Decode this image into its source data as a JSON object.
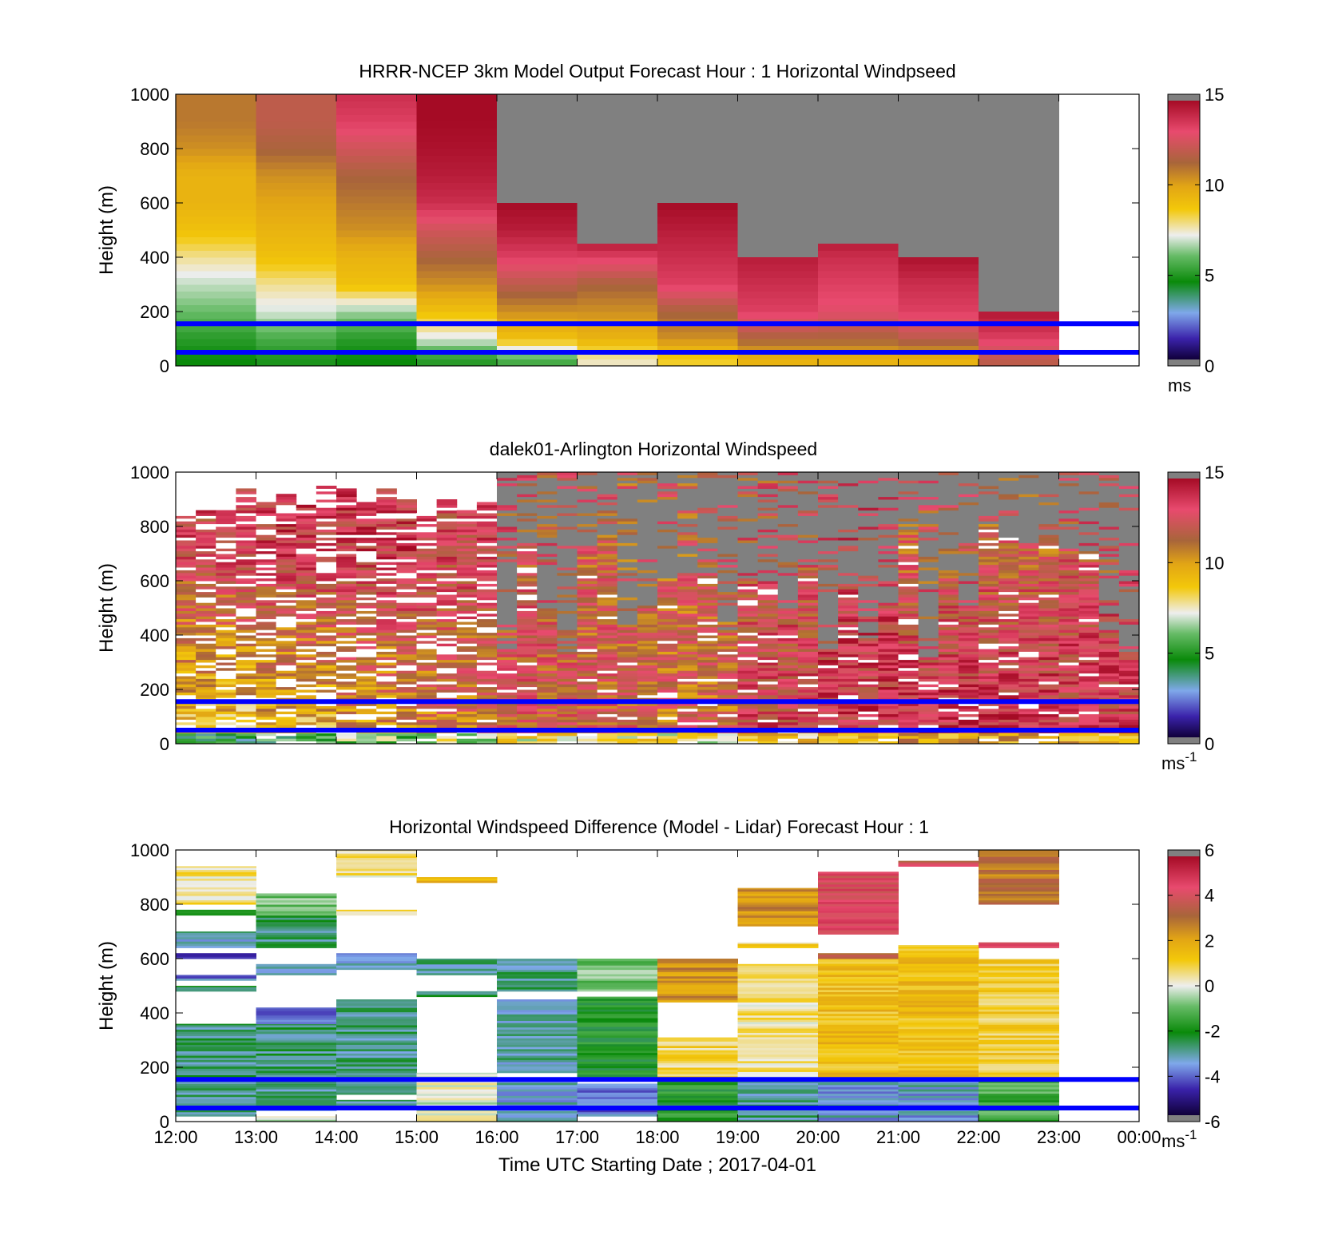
{
  "figure": {
    "xlabel": "Time UTC  Starting Date ; 2017-04-01",
    "x_ticks": [
      "12:00",
      "13:00",
      "14:00",
      "15:00",
      "16:00",
      "17:00",
      "18:00",
      "19:00",
      "20:00",
      "21:00",
      "22:00",
      "23:00",
      "00:00"
    ],
    "y_ticks": [
      "0",
      "200",
      "400",
      "600",
      "800",
      "1000"
    ],
    "ylabel": "Height (m)"
  },
  "chart_data": [
    {
      "type": "heatmap",
      "title": "HRRR-NCEP 3km Model Output   Forecast Hour : 1 Horizontal Windpseed",
      "ylabel": "Height (m)",
      "ylim": [
        0,
        1000
      ],
      "xlim": [
        "12:00",
        "00:00"
      ],
      "x_ticks": [
        "12:00",
        "13:00",
        "14:00",
        "15:00",
        "16:00",
        "17:00",
        "18:00",
        "19:00",
        "20:00",
        "21:00",
        "22:00",
        "23:00",
        "00:00"
      ],
      "colorbar": {
        "ticks": [
          "0",
          "5",
          "10",
          "15"
        ],
        "range": [
          0,
          15
        ],
        "unit": "ms"
      },
      "hlines": [
        50,
        155
      ],
      "columns": [
        "12:00",
        "13:00",
        "14:00",
        "15:00",
        "16:00",
        "17:00",
        "18:00",
        "19:00",
        "20:00",
        "21:00",
        "22:00"
      ],
      "top_of_data": [
        1000,
        1000,
        1000,
        1000,
        600,
        450,
        600,
        400,
        450,
        400,
        180
      ],
      "grey_above_data": true,
      "profiles": [
        {
          "time": "12:00",
          "heights": [
            25,
            100,
            200,
            300,
            400,
            500,
            600,
            700,
            800,
            900,
            1000
          ],
          "speeds": [
            4.5,
            5.0,
            6.0,
            6.8,
            7.8,
            9.0,
            9.5,
            9.5,
            10.5,
            11.0,
            11.0
          ]
        },
        {
          "time": "13:00",
          "heights": [
            25,
            100,
            200,
            300,
            400,
            500,
            600,
            700,
            800,
            900,
            1000
          ],
          "speeds": [
            4.8,
            5.5,
            7.0,
            7.8,
            9.0,
            9.5,
            10.0,
            10.5,
            11.5,
            12.0,
            12.0
          ]
        },
        {
          "time": "14:00",
          "heights": [
            25,
            100,
            200,
            300,
            400,
            500,
            600,
            700,
            800,
            900,
            1000
          ],
          "speeds": [
            4.5,
            5.0,
            6.5,
            9.0,
            9.5,
            10.5,
            11.0,
            11.5,
            12.5,
            13.5,
            14.0
          ]
        },
        {
          "time": "15:00",
          "heights": [
            25,
            100,
            200,
            300,
            400,
            500,
            600,
            700,
            800,
            900,
            1000
          ],
          "speeds": [
            5.0,
            7.0,
            9.0,
            10.5,
            11.5,
            12.5,
            14.0,
            14.5,
            14.8,
            15.0,
            15.0
          ]
        },
        {
          "time": "16:00",
          "heights": [
            25,
            100,
            200,
            300,
            400,
            500,
            600
          ],
          "speeds": [
            5.5,
            9.0,
            10.5,
            12.0,
            13.5,
            14.5,
            15.0
          ]
        },
        {
          "time": "17:00",
          "heights": [
            25,
            100,
            200,
            300,
            400,
            450
          ],
          "speeds": [
            7.5,
            9.5,
            10.5,
            11.5,
            13.5,
            14.5
          ]
        },
        {
          "time": "18:00",
          "heights": [
            25,
            100,
            200,
            300,
            400,
            500,
            600
          ],
          "speeds": [
            8.5,
            10.5,
            11.5,
            13.5,
            14.0,
            14.5,
            15.0
          ]
        },
        {
          "time": "19:00",
          "heights": [
            25,
            100,
            200,
            300,
            400
          ],
          "speeds": [
            9.5,
            11.5,
            13.5,
            14.0,
            14.5
          ]
        },
        {
          "time": "20:00",
          "heights": [
            25,
            100,
            200,
            300,
            400,
            450
          ],
          "speeds": [
            9.5,
            11.5,
            13.0,
            13.5,
            14.0,
            14.5
          ]
        },
        {
          "time": "21:00",
          "heights": [
            25,
            100,
            200,
            300,
            400
          ],
          "speeds": [
            9.5,
            12.0,
            13.5,
            14.0,
            14.8
          ]
        },
        {
          "time": "22:00",
          "heights": [
            25,
            100,
            180
          ],
          "speeds": [
            12.0,
            13.5,
            14.5
          ]
        }
      ]
    },
    {
      "type": "heatmap",
      "title": "dalek01-Arlington  Horizontal Windspeed",
      "ylabel": "Height (m)",
      "ylim": [
        0,
        1000
      ],
      "xlim": [
        "12:00",
        "00:00"
      ],
      "x_ticks": [
        "12:00",
        "13:00",
        "14:00",
        "15:00",
        "16:00",
        "17:00",
        "18:00",
        "19:00",
        "20:00",
        "21:00",
        "22:00",
        "23:00",
        "00:00"
      ],
      "colorbar": {
        "ticks": [
          "0",
          "5",
          "10",
          "15"
        ],
        "range": [
          0,
          15
        ],
        "unit": "ms",
        "unit_superscript": "-1"
      },
      "hlines": [
        50,
        155
      ],
      "columns_per_hour": 4,
      "description_of_field": "lidar retrieval with gaps (white) and grey regions above data top",
      "column_profiles": {
        "low_level_speed_by_hour": {
          "12:00": 8.5,
          "13:00": 9.0,
          "14:00": 10.0,
          "15:00": 11.0,
          "16:00": 12.0,
          "17:00": 12.0,
          "18:00": 11.5,
          "19:00": 13.0,
          "20:00": 13.5,
          "21:00": 14.0,
          "22:00": 14.0,
          "23:00": 13.5
        },
        "upper_level_speed_by_hour": {
          "12:00": 13.0,
          "13:00": 13.5,
          "14:00": 13.5,
          "15:00": 13.0,
          "16:00": 12.5,
          "17:00": 12.0,
          "18:00": 12.0,
          "19:00": 12.5,
          "20:00": 13.0,
          "21:00": 12.0,
          "22:00": 12.0,
          "23:00": 12.5
        }
      }
    },
    {
      "type": "heatmap",
      "title": "Horizontal Windspeed Difference (Model - Lidar) Forecast Hour : 1",
      "xlabel": "Time UTC  Starting Date ; 2017-04-01",
      "ylabel": "Height (m)",
      "ylim": [
        0,
        1000
      ],
      "xlim": [
        "12:00",
        "00:00"
      ],
      "x_ticks": [
        "12:00",
        "13:00",
        "14:00",
        "15:00",
        "16:00",
        "17:00",
        "18:00",
        "19:00",
        "20:00",
        "21:00",
        "22:00",
        "23:00",
        "00:00"
      ],
      "colorbar": {
        "ticks": [
          "6",
          "4",
          "2",
          "0",
          "-2",
          "-4",
          "-6"
        ],
        "range": [
          -6,
          6
        ],
        "unit": "ms",
        "unit_superscript": "-1"
      },
      "hlines": [
        50,
        155
      ],
      "columns": [
        "12:00",
        "13:00",
        "14:00",
        "15:00",
        "16:00",
        "17:00",
        "18:00",
        "19:00",
        "20:00",
        "21:00",
        "22:00"
      ],
      "segments": [
        {
          "time": "12:00",
          "ranges": [
            [
              20,
              360,
              -2.8
            ],
            [
              480,
              500,
              -2.5
            ],
            [
              520,
              540,
              -4.0
            ],
            [
              600,
              620,
              -5.0
            ],
            [
              640,
              700,
              -3.2
            ],
            [
              760,
              780,
              -2.5
            ],
            [
              800,
              940,
              0.5
            ]
          ]
        },
        {
          "time": "13:00",
          "ranges": [
            [
              0,
              20,
              0
            ],
            [
              40,
              140,
              -3.0
            ],
            [
              140,
              360,
              -2.8
            ],
            [
              360,
              420,
              -4.0
            ],
            [
              540,
              580,
              -3.5
            ],
            [
              640,
              760,
              -2.8
            ],
            [
              760,
              840,
              -1.0
            ]
          ]
        },
        {
          "time": "14:00",
          "ranges": [
            [
              60,
              80,
              -3.0
            ],
            [
              100,
              450,
              -3.0
            ],
            [
              560,
              620,
              -3.6
            ],
            [
              760,
              780,
              0.5
            ],
            [
              900,
              1000,
              0.5
            ]
          ]
        },
        {
          "time": "15:00",
          "ranges": [
            [
              0,
              180,
              0
            ],
            [
              460,
              480,
              -2.5
            ],
            [
              540,
              600,
              -3.0
            ],
            [
              880,
              900,
              1.5
            ]
          ]
        },
        {
          "time": "16:00",
          "ranges": [
            [
              0,
              150,
              -3.5
            ],
            [
              180,
              450,
              -3.2
            ],
            [
              480,
              600,
              -3.0
            ]
          ]
        },
        {
          "time": "17:00",
          "ranges": [
            [
              20,
              140,
              -4.0
            ],
            [
              150,
              460,
              -2.0
            ],
            [
              480,
              600,
              -1.0
            ]
          ]
        },
        {
          "time": "18:00",
          "ranges": [
            [
              0,
              150,
              -2.0
            ],
            [
              160,
              310,
              0.8
            ],
            [
              440,
              600,
              2.5
            ]
          ]
        },
        {
          "time": "19:00",
          "ranges": [
            [
              0,
              150,
              -3.0
            ],
            [
              160,
              580,
              0.5
            ],
            [
              640,
              660,
              0.8
            ],
            [
              720,
              860,
              2.5
            ]
          ]
        },
        {
          "time": "20:00",
          "ranges": [
            [
              0,
              150,
              -3.5
            ],
            [
              150,
              600,
              1.5
            ],
            [
              600,
              620,
              3.5
            ],
            [
              690,
              920,
              4.5
            ]
          ]
        },
        {
          "time": "21:00",
          "ranges": [
            [
              0,
              150,
              -3.5
            ],
            [
              150,
              650,
              1.5
            ],
            [
              940,
              960,
              4.0
            ]
          ]
        },
        {
          "time": "22:00",
          "ranges": [
            [
              0,
              150,
              -1.5
            ],
            [
              150,
              600,
              1.0
            ],
            [
              640,
              660,
              4.5
            ],
            [
              800,
              1000,
              3.0
            ]
          ]
        }
      ]
    }
  ]
}
